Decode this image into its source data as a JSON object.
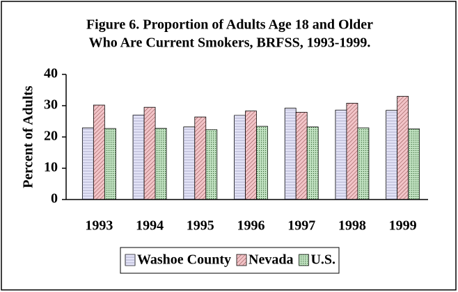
{
  "chart_data": {
    "type": "bar",
    "title": [
      "Figure 6.  Proportion of Adults Age 18 and Older",
      "Who Are Current Smokers, BRFSS, 1993-1999."
    ],
    "y_label": "Percent of Adults",
    "categories": [
      "1993",
      "1994",
      "1995",
      "1996",
      "1997",
      "1998",
      "1999"
    ],
    "series": [
      {
        "name": "Washoe County",
        "color": "#e4e4f8",
        "values": [
          22.9,
          27.0,
          23.2,
          26.9,
          29.2,
          28.6,
          28.5
        ]
      },
      {
        "name": "Nevada",
        "color": "#f2c4c8",
        "values": [
          30.2,
          29.5,
          26.4,
          28.3,
          27.9,
          30.8,
          33.0
        ]
      },
      {
        "name": "U.S.",
        "color": "#c4e4c4",
        "values": [
          22.7,
          22.8,
          22.3,
          23.4,
          23.2,
          22.9,
          22.6
        ]
      }
    ],
    "ylim": [
      0,
      40
    ],
    "yticks": [
      0,
      10,
      20,
      30,
      40
    ],
    "grid": false,
    "legend": "bottom"
  }
}
